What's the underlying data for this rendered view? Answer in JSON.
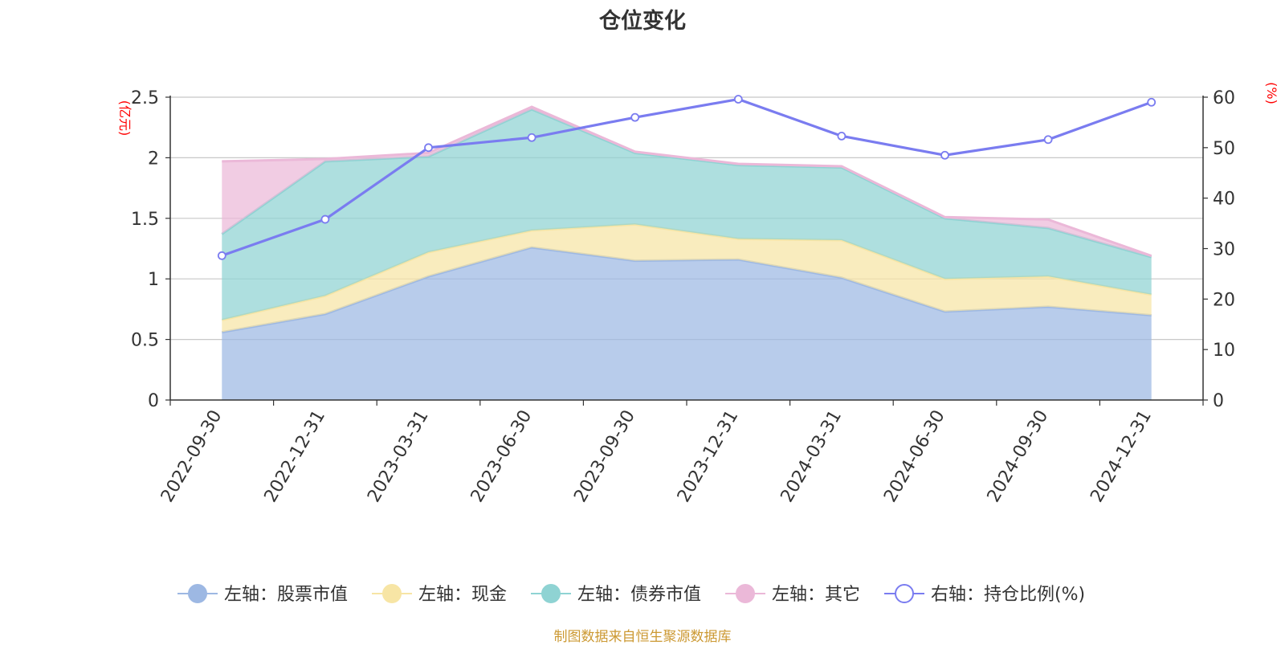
{
  "chart_data": {
    "type": "area",
    "title": "仓位变化",
    "left_axis_label": "(亿元)",
    "right_axis_label": "(%)",
    "categories": [
      "2022-09-30",
      "2022-12-31",
      "2023-03-31",
      "2023-06-30",
      "2023-09-30",
      "2023-12-31",
      "2024-03-31",
      "2024-06-30",
      "2024-09-30",
      "2024-12-31"
    ],
    "left_ylim": [
      0,
      2.5
    ],
    "left_ticks": [
      0,
      0.5,
      1,
      1.5,
      2,
      2.5
    ],
    "left_tick_labels": [
      "0",
      "0.5",
      "1",
      "1.5",
      "2",
      "2.5"
    ],
    "right_ylim": [
      0,
      60
    ],
    "right_ticks": [
      0,
      10,
      20,
      30,
      40,
      50,
      60
    ],
    "right_tick_labels": [
      "0",
      "10",
      "20",
      "30",
      "40",
      "50",
      "60"
    ],
    "stacked_series": [
      {
        "name": "左轴：股票市值",
        "color": "#9db8e3",
        "values": [
          0.56,
          0.71,
          1.02,
          1.26,
          1.15,
          1.16,
          1.01,
          0.73,
          0.77,
          0.7
        ]
      },
      {
        "name": "左轴：现金",
        "color": "#f7e5a5",
        "values": [
          0.1,
          0.15,
          0.2,
          0.14,
          0.3,
          0.17,
          0.31,
          0.27,
          0.25,
          0.17
        ]
      },
      {
        "name": "左轴：债券市值",
        "color": "#8fd3d3",
        "values": [
          0.71,
          1.11,
          0.79,
          1.0,
          0.59,
          0.61,
          0.6,
          0.5,
          0.4,
          0.31
        ]
      },
      {
        "name": "左轴：其它",
        "color": "#ebb8d8",
        "values": [
          0.6,
          0.02,
          0.03,
          0.02,
          0.01,
          0.01,
          0.01,
          0.01,
          0.07,
          0.01
        ]
      }
    ],
    "line_series": {
      "name": "右轴：持仓比例(%)",
      "color": "#7a7cf0",
      "values": [
        28.6,
        35.8,
        50.0,
        52.0,
        56.0,
        59.6,
        52.3,
        48.5,
        51.6,
        59.0
      ]
    },
    "legend_position": "bottom"
  },
  "footnote": "制图数据来自恒生聚源数据库"
}
